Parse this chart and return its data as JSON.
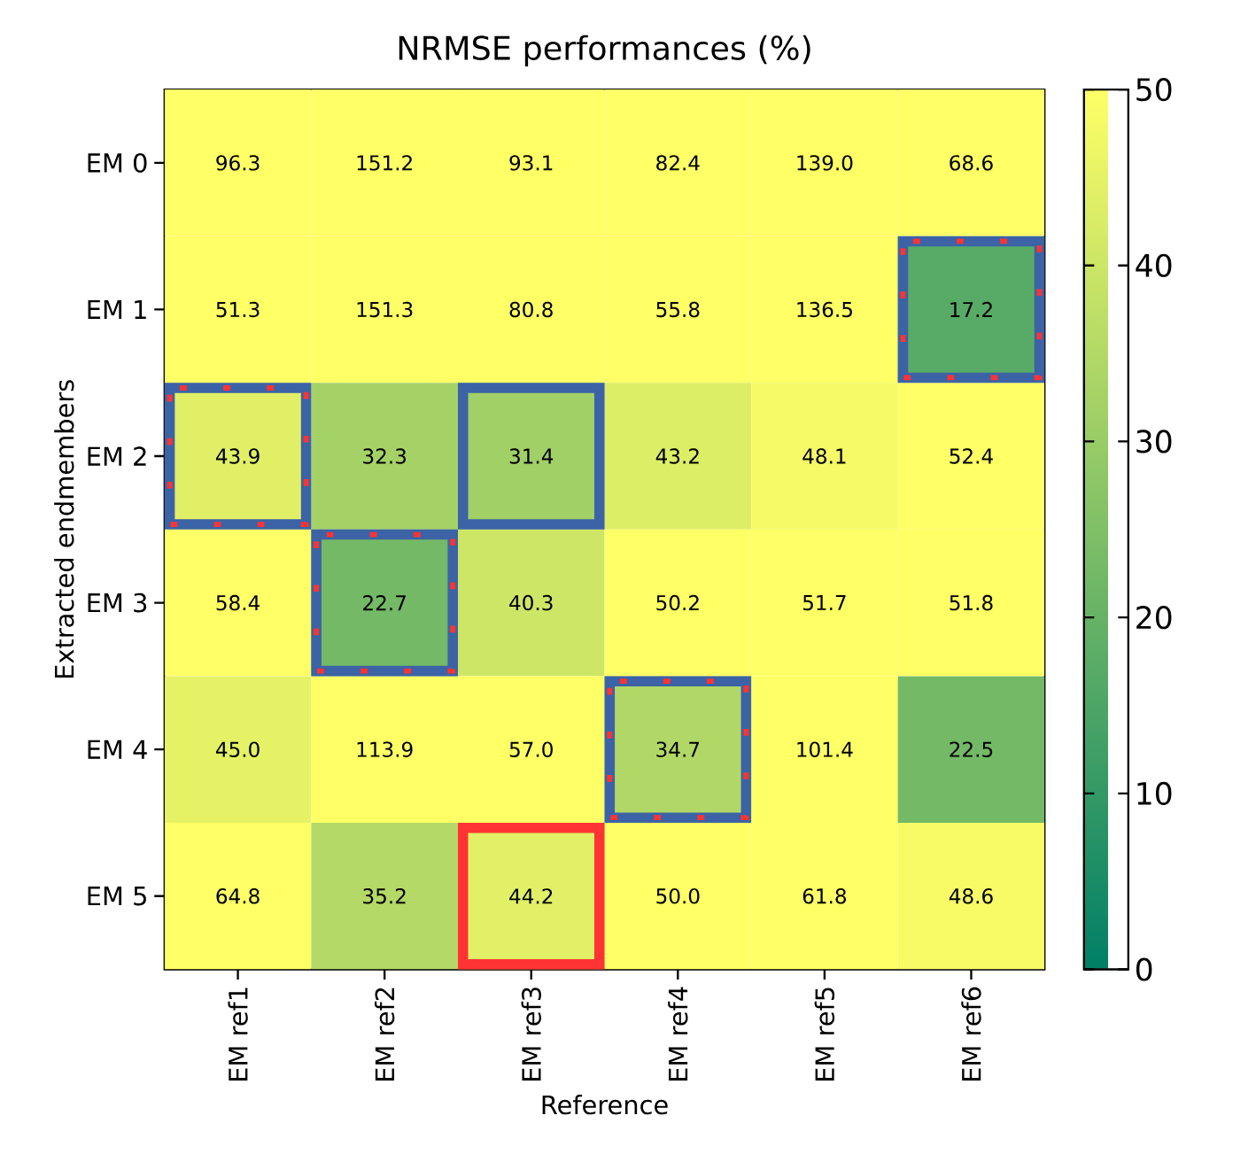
{
  "chart_data": {
    "type": "heatmap",
    "title": "NRMSE performances (%)",
    "xlabel": "Reference",
    "ylabel": "Extracted endmembers",
    "categories": [
      "EM ref1",
      "EM ref2",
      "EM ref3",
      "EM ref4",
      "EM ref5",
      "EM ref6"
    ],
    "y_categories": [
      "EM 0",
      "EM 1",
      "EM 2",
      "EM 3",
      "EM 4",
      "EM 5"
    ],
    "cells": [
      [
        96.3,
        151.2,
        93.1,
        82.4,
        139.0,
        68.6
      ],
      [
        51.3,
        151.3,
        80.8,
        55.8,
        136.5,
        17.2
      ],
      [
        43.9,
        32.3,
        31.4,
        43.2,
        48.1,
        52.4
      ],
      [
        58.4,
        22.7,
        40.3,
        50.2,
        51.7,
        51.8
      ],
      [
        45.0,
        113.9,
        57.0,
        34.7,
        101.4,
        22.5
      ],
      [
        64.8,
        35.2,
        44.2,
        50.0,
        61.8,
        48.6
      ]
    ],
    "cell_labels": [
      [
        "96.3",
        "151.2",
        "93.1",
        "82.4",
        "139.0",
        "68.6"
      ],
      [
        "51.3",
        "151.3",
        "80.8",
        "55.8",
        "136.5",
        "17.2"
      ],
      [
        "43.9",
        "32.3",
        "31.4",
        "43.2",
        "48.1",
        "52.4"
      ],
      [
        "58.4",
        "22.7",
        "40.3",
        "50.2",
        "51.7",
        "51.8"
      ],
      [
        "45.0",
        "113.9",
        "57.0",
        "34.7",
        "101.4",
        "22.5"
      ],
      [
        "64.8",
        "35.2",
        "44.2",
        "50.0",
        "61.8",
        "48.6"
      ]
    ],
    "clim": [
      0,
      50
    ],
    "cticks": [
      0,
      10,
      20,
      30,
      40,
      50
    ]
  }
}
